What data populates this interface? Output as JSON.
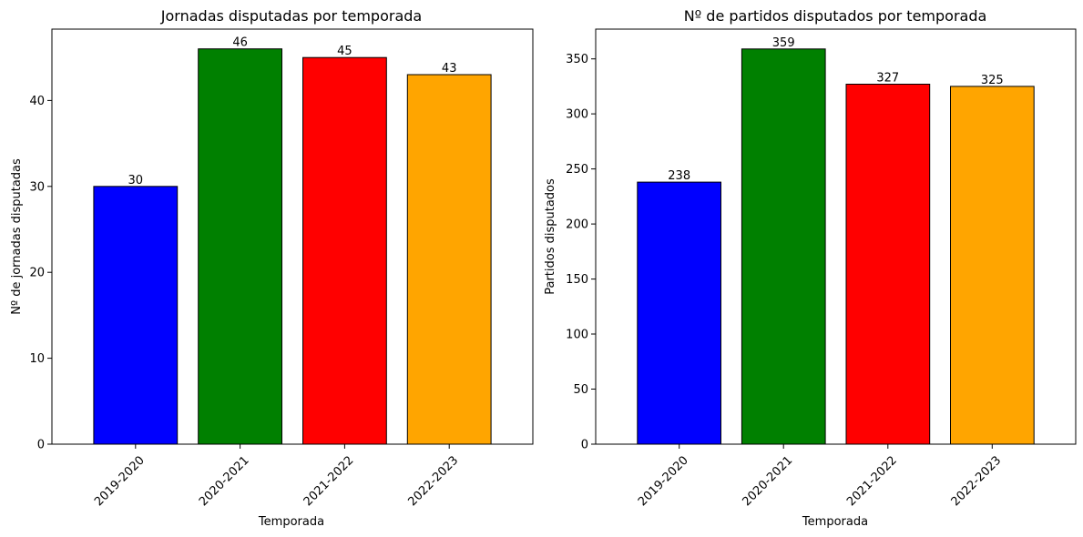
{
  "chart_data": [
    {
      "type": "bar",
      "title": "Jornadas disputadas por temporada",
      "xlabel": "Temporada",
      "ylabel": "Nº de jornadas disputadas",
      "categories": [
        "2019-2020",
        "2020-2021",
        "2021-2022",
        "2022-2023"
      ],
      "values": [
        30,
        46,
        45,
        43
      ],
      "value_labels": [
        "30",
        "46",
        "45",
        "43"
      ],
      "colors": [
        "#0000ff",
        "#008000",
        "#ff0000",
        "#ffa500"
      ],
      "ylim": [
        0,
        48.3
      ],
      "yticks": [
        0,
        10,
        20,
        30,
        40
      ],
      "ytick_labels": [
        "0",
        "10",
        "20",
        "30",
        "40"
      ],
      "grid": false,
      "legend": "none"
    },
    {
      "type": "bar",
      "title": "Nº de partidos disputados por temporada",
      "xlabel": "Temporada",
      "ylabel": "Partidos disputados",
      "categories": [
        "2019-2020",
        "2020-2021",
        "2021-2022",
        "2022-2023"
      ],
      "values": [
        238,
        359,
        327,
        325
      ],
      "value_labels": [
        "238",
        "359",
        "327",
        "325"
      ],
      "colors": [
        "#0000ff",
        "#008000",
        "#ff0000",
        "#ffa500"
      ],
      "ylim": [
        0,
        377
      ],
      "yticks": [
        0,
        50,
        100,
        150,
        200,
        250,
        300,
        350
      ],
      "ytick_labels": [
        "0",
        "50",
        "100",
        "150",
        "200",
        "250",
        "300",
        "350"
      ],
      "grid": false,
      "legend": "none"
    }
  ]
}
